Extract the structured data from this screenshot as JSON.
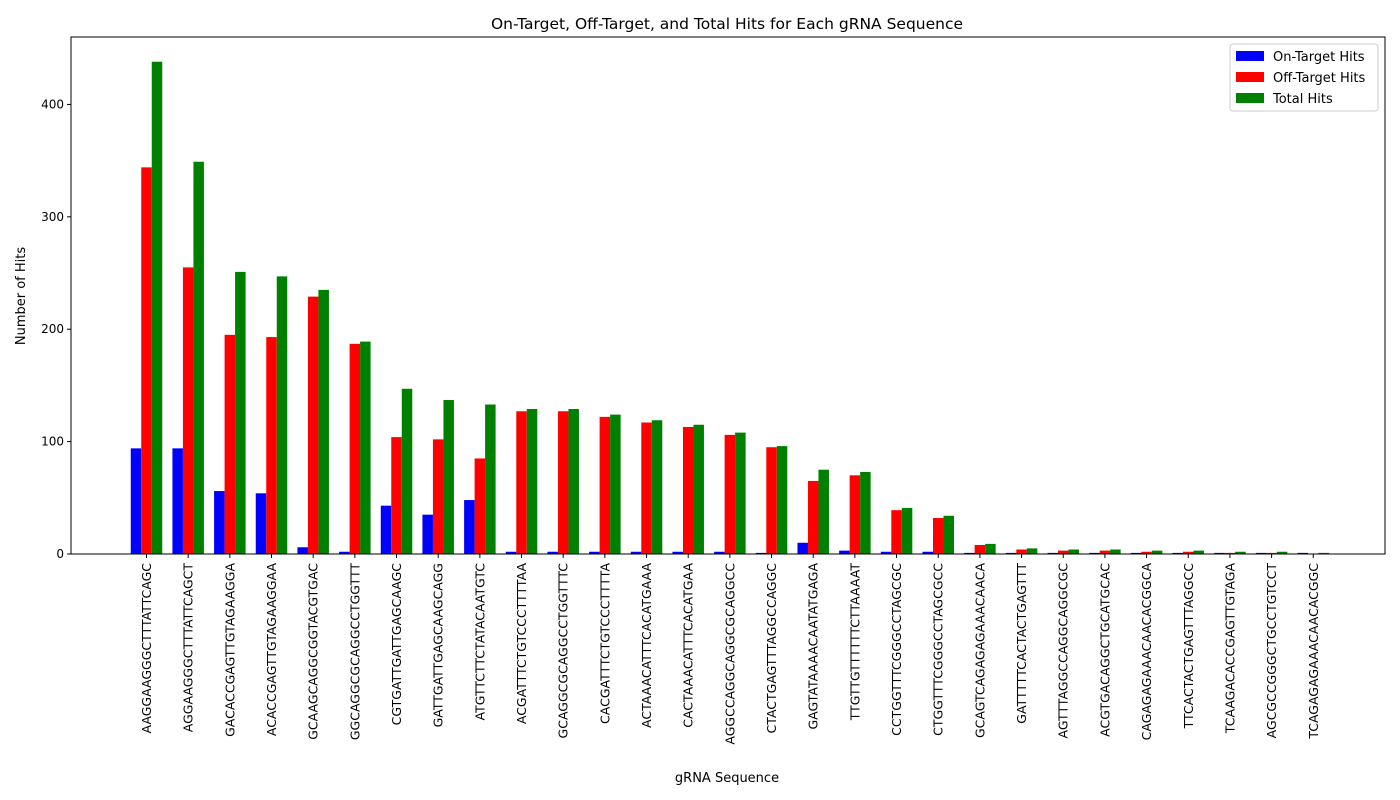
{
  "chart_data": {
    "type": "bar",
    "title": "On-Target, Off-Target, and Total Hits for Each gRNA Sequence",
    "xlabel": "gRNA Sequence",
    "ylabel": "Number of Hits",
    "ylim": [
      0,
      460
    ],
    "yticks": [
      0,
      100,
      200,
      300,
      400
    ],
    "grid": false,
    "legend_position": "top-right",
    "categories": [
      "AAGGAAGGGCTTTATTCAGC",
      "AGGAAGGGCTTTATTCAGCT",
      "GACACCGAGTTGTAGAAGGA",
      "ACACCGAGTTGTAGAAGGAA",
      "GCAAGCAGGCGGTACGTGAC",
      "GGCAGGCGCAGGCCTGGTTT",
      "CGTGATTGATTGAGCAAGC",
      "GATTGATTGAGCAAGCAGG",
      "ATGTTCTTCTATACAATGTC",
      "ACGATTTCTGTCCCTTTTAA",
      "GCAGGCGCAGGCCTGGTTTC",
      "CACGATTTCTGTCCCTTTTA",
      "ACTAAACATTTCACATGAAA",
      "CACTAAACATTTCACATGAA",
      "AGGCCAGGCAGGCGCAGGCC",
      "CTACTGAGTTTAGGCCAGGC",
      "GAGTATAAAACAATATGAGA",
      "TTGTTGTTTTTTCTTAAAAT",
      "CCTGGTTTCGGGCCTAGCGC",
      "CTGGTTTCGGGCCTAGCGCC",
      "GCAGTCAGAGAGAAACAACA",
      "GATTTTTCACTACTGAGTTT",
      "AGTTTAGGCCAGGCAGGCGC",
      "ACGTGACAGGCTGCATGCAC",
      "CAGAGAGAAACAACACGGCA",
      "TTCACTACTGAGTTTAGGCC",
      "TCAAGACACCGAGTTGTAGA",
      "AGCGCCGGGCTGCCTGTCCT",
      "TCAGAGAGAAACAACACGGC"
    ],
    "series": [
      {
        "name": "On-Target Hits",
        "color": "#0000ff",
        "values": [
          94,
          94,
          56,
          54,
          6,
          2,
          43,
          35,
          48,
          2,
          2,
          2,
          2,
          2,
          2,
          1,
          10,
          3,
          2,
          2,
          1,
          1,
          1,
          1,
          1,
          1,
          1,
          1,
          1
        ]
      },
      {
        "name": "Off-Target Hits",
        "color": "#ff0000",
        "values": [
          344,
          255,
          195,
          193,
          229,
          187,
          104,
          102,
          85,
          127,
          127,
          122,
          117,
          113,
          106,
          95,
          65,
          70,
          39,
          32,
          8,
          4,
          3,
          3,
          2,
          2,
          1,
          1,
          0
        ]
      },
      {
        "name": "Total Hits",
        "color": "#008000",
        "values": [
          438,
          349,
          251,
          247,
          235,
          189,
          147,
          137,
          133,
          129,
          129,
          124,
          119,
          115,
          108,
          96,
          75,
          73,
          41,
          34,
          9,
          5,
          4,
          4,
          3,
          3,
          2,
          2,
          1
        ]
      }
    ]
  }
}
